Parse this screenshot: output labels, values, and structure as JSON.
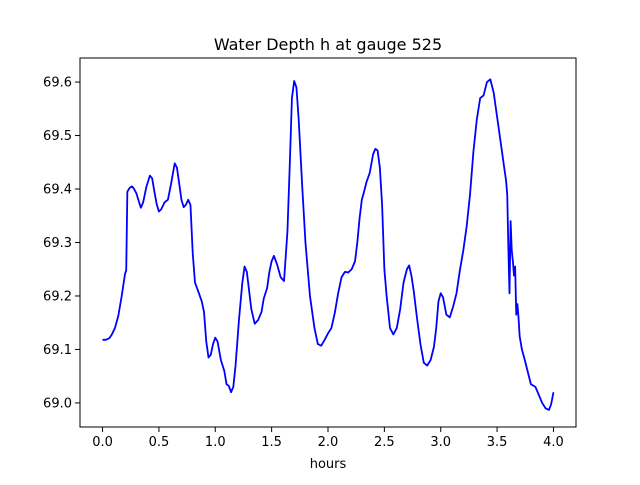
{
  "chart_data": {
    "type": "line",
    "title": "Water Depth h at gauge 525",
    "xlabel": "hours",
    "ylabel": "",
    "xlim": [
      -0.2,
      4.2
    ],
    "ylim": [
      68.955,
      69.645
    ],
    "xticks": [
      0.0,
      0.5,
      1.0,
      1.5,
      2.0,
      2.5,
      3.0,
      3.5,
      4.0
    ],
    "xtick_labels": [
      "0.0",
      "0.5",
      "1.0",
      "1.5",
      "2.0",
      "2.5",
      "3.0",
      "3.5",
      "4.0"
    ],
    "yticks": [
      69.0,
      69.1,
      69.2,
      69.3,
      69.4,
      69.5,
      69.6
    ],
    "ytick_labels": [
      "69.0",
      "69.1",
      "69.2",
      "69.3",
      "69.4",
      "69.5",
      "69.6"
    ],
    "grid": false,
    "series": [
      {
        "color": "#0000ff",
        "x": [
          0.0,
          0.03,
          0.06,
          0.08,
          0.11,
          0.14,
          0.17,
          0.2,
          0.21,
          0.22,
          0.24,
          0.26,
          0.27,
          0.28,
          0.3,
          0.32,
          0.34,
          0.36,
          0.39,
          0.42,
          0.44,
          0.46,
          0.48,
          0.5,
          0.52,
          0.55,
          0.58,
          0.61,
          0.64,
          0.66,
          0.68,
          0.7,
          0.72,
          0.74,
          0.76,
          0.78,
          0.8,
          0.82,
          0.85,
          0.88,
          0.9,
          0.92,
          0.94,
          0.96,
          0.98,
          1.0,
          1.02,
          1.05,
          1.08,
          1.1,
          1.12,
          1.14,
          1.16,
          1.18,
          1.21,
          1.24,
          1.26,
          1.28,
          1.3,
          1.32,
          1.35,
          1.38,
          1.41,
          1.43,
          1.46,
          1.48,
          1.5,
          1.52,
          1.55,
          1.58,
          1.61,
          1.64,
          1.66,
          1.68,
          1.7,
          1.72,
          1.74,
          1.77,
          1.8,
          1.84,
          1.88,
          1.91,
          1.94,
          1.97,
          2.0,
          2.03,
          2.06,
          2.09,
          2.12,
          2.15,
          2.18,
          2.21,
          2.24,
          2.26,
          2.28,
          2.3,
          2.32,
          2.34,
          2.37,
          2.4,
          2.42,
          2.44,
          2.46,
          2.48,
          2.5,
          2.52,
          2.55,
          2.58,
          2.61,
          2.64,
          2.67,
          2.7,
          2.72,
          2.74,
          2.76,
          2.79,
          2.82,
          2.85,
          2.88,
          2.91,
          2.94,
          2.96,
          2.98,
          3.0,
          3.02,
          3.05,
          3.08,
          3.11,
          3.14,
          3.17,
          3.2,
          3.23,
          3.26,
          3.29,
          3.32,
          3.35,
          3.38,
          3.41,
          3.44,
          3.47,
          3.5,
          3.53,
          3.56,
          3.58,
          3.59,
          3.6,
          3.61,
          3.62,
          3.63,
          3.64,
          3.65,
          3.66,
          3.67,
          3.68,
          3.69,
          3.7,
          3.72,
          3.74,
          3.77,
          3.8,
          3.84,
          3.87,
          3.9,
          3.93,
          3.96,
          3.98,
          4.0
        ],
        "y": [
          69.118,
          69.118,
          69.121,
          69.127,
          69.14,
          69.163,
          69.2,
          69.242,
          69.248,
          69.395,
          69.402,
          69.405,
          69.403,
          69.4,
          69.392,
          69.378,
          69.365,
          69.375,
          69.405,
          69.425,
          69.42,
          69.395,
          69.372,
          69.358,
          69.362,
          69.375,
          69.38,
          69.412,
          69.448,
          69.44,
          69.41,
          69.38,
          69.366,
          69.371,
          69.38,
          69.37,
          69.28,
          69.225,
          69.208,
          69.19,
          69.17,
          69.115,
          69.085,
          69.09,
          69.11,
          69.122,
          69.115,
          69.08,
          69.06,
          69.035,
          69.032,
          69.02,
          69.03,
          69.07,
          69.155,
          69.225,
          69.255,
          69.245,
          69.21,
          69.175,
          69.148,
          69.155,
          69.17,
          69.195,
          69.215,
          69.245,
          69.265,
          69.275,
          69.258,
          69.235,
          69.228,
          69.32,
          69.44,
          69.57,
          69.602,
          69.59,
          69.53,
          69.41,
          69.3,
          69.2,
          69.14,
          69.11,
          69.107,
          69.118,
          69.13,
          69.14,
          69.168,
          69.205,
          69.235,
          69.245,
          69.244,
          69.25,
          69.265,
          69.3,
          69.345,
          69.38,
          69.395,
          69.412,
          69.43,
          69.465,
          69.475,
          69.472,
          69.44,
          69.37,
          69.25,
          69.2,
          69.14,
          69.128,
          69.14,
          69.175,
          69.225,
          69.25,
          69.257,
          69.238,
          69.21,
          69.158,
          69.11,
          69.075,
          69.07,
          69.08,
          69.105,
          69.14,
          69.19,
          69.205,
          69.198,
          69.165,
          69.16,
          69.18,
          69.205,
          69.248,
          69.285,
          69.33,
          69.39,
          69.47,
          69.53,
          69.57,
          69.575,
          69.6,
          69.605,
          69.58,
          69.535,
          69.49,
          69.445,
          69.415,
          69.39,
          69.29,
          69.205,
          69.34,
          69.285,
          69.265,
          69.238,
          69.255,
          69.165,
          69.185,
          69.16,
          69.125,
          69.1,
          69.085,
          69.06,
          69.035,
          69.03,
          69.015,
          69.0,
          68.99,
          68.987,
          68.998,
          69.02
        ]
      }
    ]
  }
}
